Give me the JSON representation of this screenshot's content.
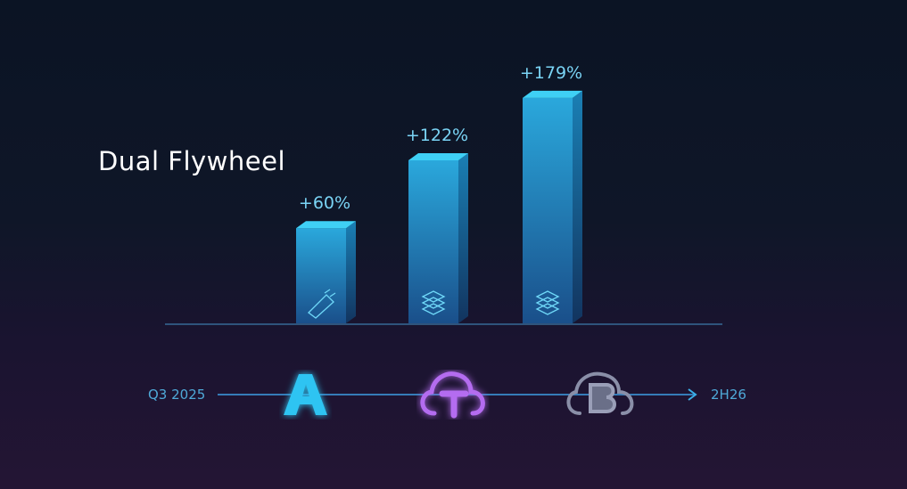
{
  "title": "Dual Flywheel",
  "chart_data": {
    "type": "bar",
    "categories": [
      "A",
      "T",
      "B"
    ],
    "values": [
      60,
      122,
      179
    ],
    "data_labels": [
      "+60%",
      "+122%",
      "+179%"
    ],
    "bar_icons": [
      "chip-icon",
      "server-stack-icon",
      "server-stack-icon"
    ],
    "colors": {
      "bar": "#1e90c8",
      "bar_top": "#3fd0f5",
      "label": "#7ad4f5"
    }
  },
  "timeline": {
    "start_label": "Q3 2025",
    "end_label": "2H26",
    "milestones": [
      {
        "letter": "A",
        "icon": "letter-a-icon",
        "color": "#2ec4f2"
      },
      {
        "letter": "T",
        "icon": "cloud-t-icon",
        "color": "#b46cf0"
      },
      {
        "letter": "B",
        "icon": "cloud-b-icon",
        "color": "#8a8fa8"
      }
    ]
  }
}
